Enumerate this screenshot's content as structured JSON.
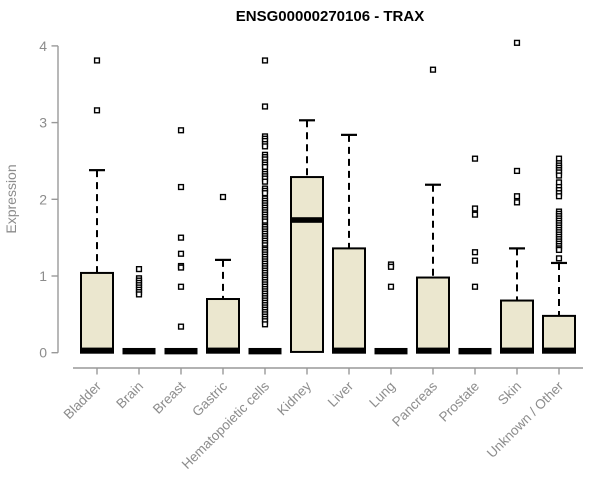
{
  "chart_data": {
    "type": "box",
    "title": "ENSG00000270106 - TRAX",
    "ylabel": "Expression",
    "xlabel": "",
    "ylim": [
      0,
      4
    ],
    "yticks": [
      0,
      1,
      2,
      3,
      4
    ],
    "ytick_labels": [
      "0",
      "1",
      "2",
      "3",
      "4"
    ],
    "grid": false,
    "legend": "none",
    "colors": {
      "box_fill": "#ebe7cf",
      "box_stroke": "#000000",
      "median": "#000000",
      "outlier_fill": "#ffffff",
      "outlier_stroke": "#000000",
      "axis_line": "#999999",
      "axis_text": "#8c8c8c",
      "title_text": "#000000"
    },
    "categories": [
      "Bladder",
      "Brain",
      "Breast",
      "Gastric",
      "Hematopoietic cells",
      "Kidney",
      "Liver",
      "Lung",
      "Pancreas",
      "Prostate",
      "Skin",
      "Unknown / Other"
    ],
    "series": [
      {
        "category": "Bladder",
        "q1": 0,
        "median": 0.03,
        "q3": 1.04,
        "whisker_low": 0,
        "whisker_high": 2.38,
        "outliers": [
          3.16,
          3.81
        ]
      },
      {
        "category": "Brain",
        "q1": 0,
        "median": 0.02,
        "q3": 0.04,
        "whisker_low": 0,
        "whisker_high": 0.04,
        "outliers": [
          1.09,
          0.97,
          0.94,
          0.91,
          0.88,
          0.85,
          0.82,
          0.79,
          0.76
        ]
      },
      {
        "category": "Breast",
        "q1": 0,
        "median": 0.02,
        "q3": 0.04,
        "whisker_low": 0,
        "whisker_high": 0.04,
        "outliers": [
          2.9,
          2.16,
          1.5,
          1.29,
          1.13,
          1.11,
          0.86,
          0.34
        ]
      },
      {
        "category": "Gastric",
        "q1": 0,
        "median": 0.03,
        "q3": 0.7,
        "whisker_low": 0,
        "whisker_high": 1.21,
        "outliers": [
          2.03
        ]
      },
      {
        "category": "Hematopoietic cells",
        "q1": 0,
        "median": 0.02,
        "q3": 0.04,
        "whisker_low": 0,
        "whisker_high": 0.04,
        "outliers": [
          3.81,
          3.21,
          2.82,
          2.79,
          2.76,
          2.72,
          2.69,
          2.58,
          2.55,
          2.52,
          2.48,
          2.45,
          2.42,
          2.36,
          2.33,
          2.3,
          2.27,
          2.23,
          2.14,
          2.11,
          2.08,
          2.01,
          1.98,
          1.95,
          1.92,
          1.89,
          1.86,
          1.83,
          1.8,
          1.77,
          1.74,
          1.71,
          1.66,
          1.64,
          1.61,
          1.58,
          1.55,
          1.52,
          1.49,
          1.46,
          1.43,
          1.4,
          1.36,
          1.34,
          1.31,
          1.28,
          1.25,
          1.22,
          1.19,
          1.16,
          1.13,
          1.1,
          1.07,
          1.04,
          1.01,
          0.98,
          0.95,
          0.92,
          0.89,
          0.86,
          0.83,
          0.8,
          0.77,
          0.74,
          0.71,
          0.68,
          0.65,
          0.62,
          0.59,
          0.56,
          0.53,
          0.5,
          0.47,
          0.44,
          0.41,
          0.37
        ]
      },
      {
        "category": "Kidney",
        "q1": 0.01,
        "median": 1.73,
        "q3": 2.29,
        "whisker_low": 0.01,
        "whisker_high": 3.03,
        "outliers": []
      },
      {
        "category": "Liver",
        "q1": 0,
        "median": 0.03,
        "q3": 1.36,
        "whisker_low": 0,
        "whisker_high": 2.84,
        "outliers": []
      },
      {
        "category": "Lung",
        "q1": 0,
        "median": 0.02,
        "q3": 0.04,
        "whisker_low": 0,
        "whisker_high": 0.04,
        "outliers": [
          1.15,
          1.12,
          0.86
        ]
      },
      {
        "category": "Pancreas",
        "q1": 0,
        "median": 0.03,
        "q3": 0.98,
        "whisker_low": 0,
        "whisker_high": 2.19,
        "outliers": [
          3.69
        ]
      },
      {
        "category": "Prostate",
        "q1": 0,
        "median": 0.02,
        "q3": 0.04,
        "whisker_low": 0,
        "whisker_high": 0.04,
        "outliers": [
          2.53,
          1.88,
          1.8,
          1.31,
          1.2,
          0.86
        ]
      },
      {
        "category": "Skin",
        "q1": 0,
        "median": 0.03,
        "q3": 0.68,
        "whisker_low": 0,
        "whisker_high": 1.36,
        "outliers": [
          4.04,
          2.37,
          2.04,
          1.96
        ]
      },
      {
        "category": "Unknown / Other",
        "q1": 0,
        "median": 0.03,
        "q3": 0.48,
        "whisker_low": 0,
        "whisker_high": 1.17,
        "outliers": [
          2.53,
          2.47,
          2.44,
          2.41,
          2.38,
          2.35,
          2.31,
          2.22,
          2.16,
          2.12,
          2.08,
          2.04,
          1.84,
          1.81,
          1.78,
          1.75,
          1.72,
          1.69,
          1.66,
          1.63,
          1.6,
          1.57,
          1.54,
          1.51,
          1.48,
          1.45,
          1.42,
          1.39,
          1.36,
          1.34,
          1.23
        ]
      }
    ]
  }
}
